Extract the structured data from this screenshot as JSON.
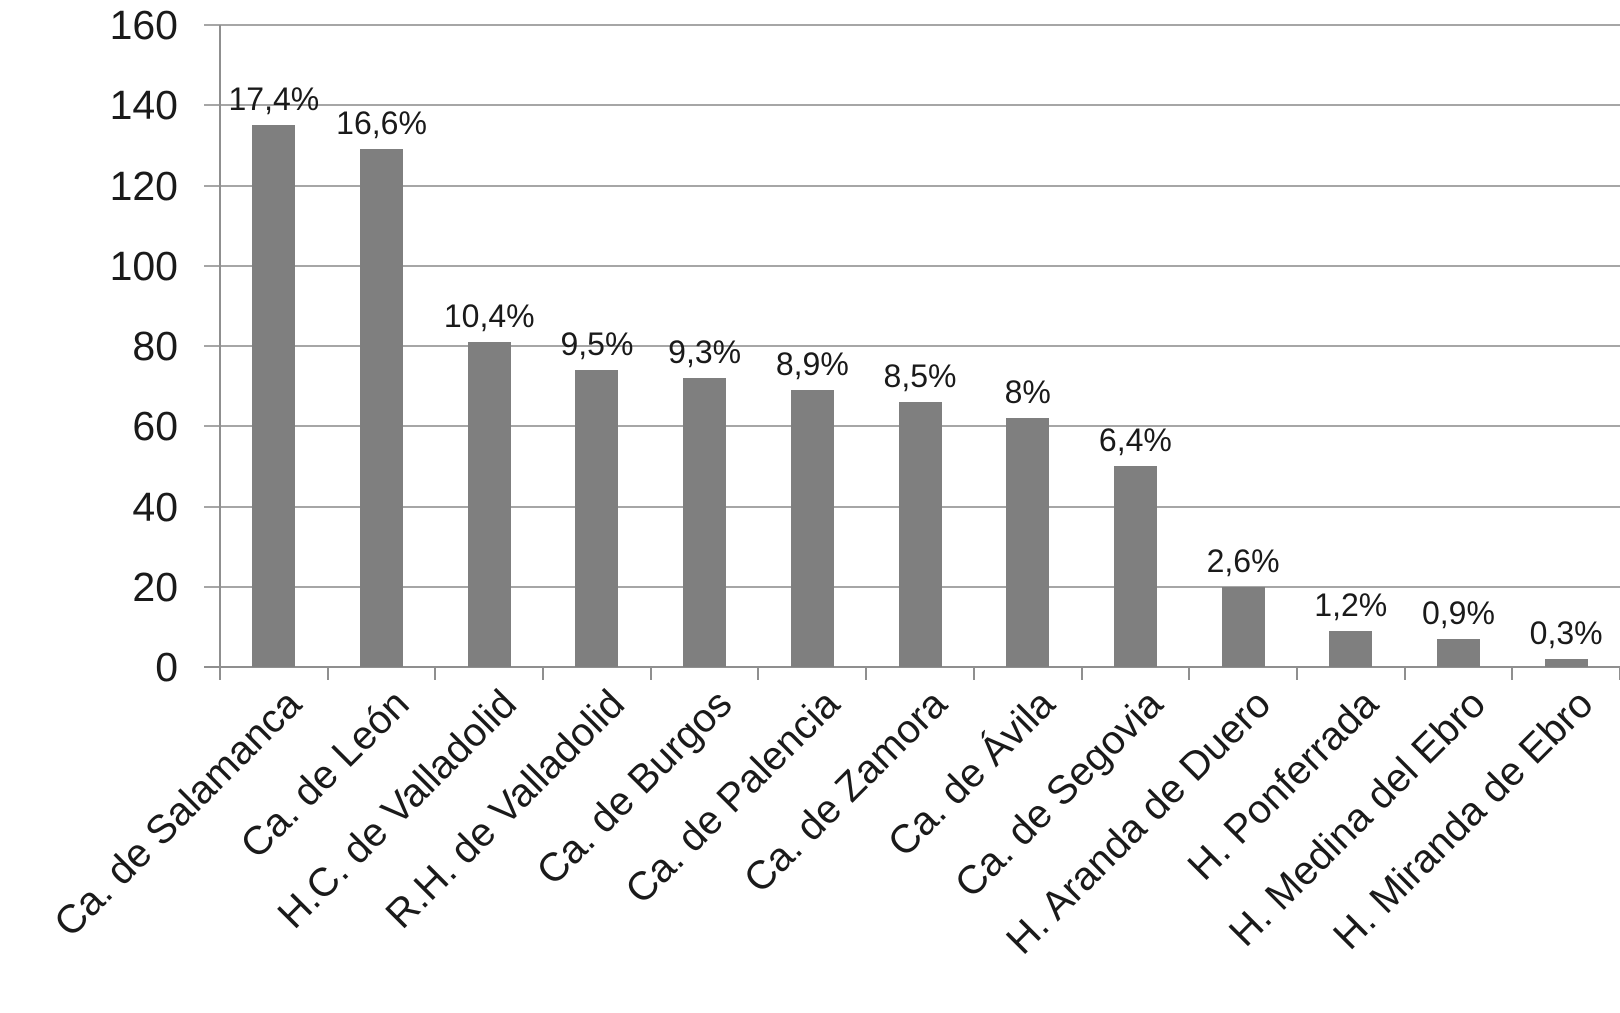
{
  "chart_data": {
    "type": "bar",
    "title": "",
    "xlabel": "",
    "ylabel": "",
    "categories": [
      "Ca. de Salamanca",
      "Ca. de León",
      "H.C. de Valladolid",
      "R.H. de Valladolid",
      "Ca. de Burgos",
      "Ca. de Palencia",
      "Ca. de Zamora",
      "Ca. de Ávila",
      "Ca. de Segovia",
      "H. Aranda de Duero",
      "H. Ponferrada",
      "H. Medina del Ebro",
      "H. Miranda de Ebro"
    ],
    "values": [
      135,
      129,
      81,
      74,
      72,
      69,
      66,
      62,
      50,
      20,
      9,
      7,
      2
    ],
    "bar_labels": [
      "17,4%",
      "16,6%",
      "10,4%",
      "9,5%",
      "9,3%",
      "8,9%",
      "8,5%",
      "8%",
      "6,4%",
      "2,6%",
      "1,2%",
      "0,9%",
      "0,3%"
    ],
    "ylim": [
      0,
      160
    ],
    "y_ticks": [
      0,
      20,
      40,
      60,
      80,
      100,
      120,
      140,
      160
    ],
    "grid": "horizontal",
    "legend": "none",
    "colors": {
      "bar": "#7f7f7f",
      "gridline": "#a6a6a6",
      "axis": "#8f8f8f",
      "text": "#1a1a1a"
    }
  }
}
